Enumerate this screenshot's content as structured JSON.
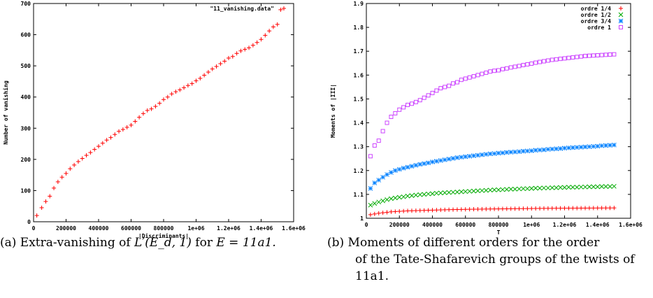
{
  "chart_data": [
    {
      "type": "scatter",
      "xlabel": "|Discriminants|",
      "ylabel": "Number of vanishing",
      "xlim": [
        0,
        1600000
      ],
      "ylim": [
        0,
        700
      ],
      "xticks": [
        0,
        200000,
        400000,
        600000,
        800000,
        1000000,
        1200000,
        1400000,
        1600000
      ],
      "xtick_labels": [
        "0",
        "200000",
        "400000",
        "600000",
        "800000",
        "1e+06",
        "1.2e+06",
        "1.4e+06",
        "1.6e+06"
      ],
      "yticks": [
        0,
        100,
        200,
        300,
        400,
        500,
        600,
        700
      ],
      "ytick_labels": [
        "0",
        "100",
        "200",
        "300",
        "400",
        "500",
        "600",
        "700"
      ],
      "legend_position": "top-right",
      "series": [
        {
          "name": "\"11_vanishing.data\"",
          "color": "#ff0000",
          "marker": "+",
          "x": [
            20000,
            50000,
            75000,
            100000,
            125000,
            150000,
            175000,
            200000,
            225000,
            250000,
            275000,
            300000,
            325000,
            350000,
            375000,
            400000,
            425000,
            450000,
            475000,
            500000,
            525000,
            550000,
            575000,
            600000,
            625000,
            650000,
            675000,
            700000,
            725000,
            750000,
            775000,
            800000,
            825000,
            850000,
            875000,
            900000,
            925000,
            950000,
            975000,
            1000000,
            1025000,
            1050000,
            1075000,
            1100000,
            1125000,
            1150000,
            1175000,
            1200000,
            1225000,
            1250000,
            1275000,
            1300000,
            1325000,
            1350000,
            1375000,
            1400000,
            1425000,
            1450000,
            1475000,
            1500000,
            1520000
          ],
          "y": [
            20,
            45,
            65,
            82,
            108,
            128,
            143,
            155,
            170,
            182,
            193,
            203,
            213,
            222,
            232,
            242,
            252,
            262,
            270,
            280,
            290,
            296,
            303,
            310,
            322,
            335,
            347,
            357,
            362,
            370,
            380,
            392,
            400,
            410,
            417,
            423,
            430,
            437,
            443,
            452,
            460,
            470,
            480,
            490,
            498,
            507,
            515,
            525,
            530,
            540,
            548,
            553,
            558,
            566,
            575,
            585,
            598,
            612,
            625,
            633,
            680
          ]
        }
      ]
    },
    {
      "type": "scatter",
      "xlabel": "T",
      "ylabel": "Moments of |III|",
      "xlim": [
        0,
        1600000
      ],
      "ylim": [
        1,
        1.9
      ],
      "xticks": [
        0,
        200000,
        400000,
        600000,
        800000,
        1000000,
        1200000,
        1400000,
        1600000
      ],
      "xtick_labels": [
        "0",
        "200000",
        "400000",
        "600000",
        "800000",
        "1e+06",
        "1.2e+06",
        "1.4e+06",
        "1.6e+06"
      ],
      "yticks": [
        1,
        1.1,
        1.2,
        1.3,
        1.4,
        1.5,
        1.6,
        1.7,
        1.8,
        1.9
      ],
      "ytick_labels": [
        "1",
        "1.1",
        "1.2",
        "1.3",
        "1.4",
        "1.5",
        "1.6",
        "1.7",
        "1.8",
        "1.9"
      ],
      "legend_position": "top-right",
      "x": [
        25000,
        50000,
        75000,
        100000,
        125000,
        150000,
        175000,
        200000,
        225000,
        250000,
        275000,
        300000,
        325000,
        350000,
        375000,
        400000,
        425000,
        450000,
        475000,
        500000,
        525000,
        550000,
        575000,
        600000,
        625000,
        650000,
        675000,
        700000,
        725000,
        750000,
        775000,
        800000,
        825000,
        850000,
        875000,
        900000,
        925000,
        950000,
        975000,
        1000000,
        1025000,
        1050000,
        1075000,
        1100000,
        1125000,
        1150000,
        1175000,
        1200000,
        1225000,
        1250000,
        1275000,
        1300000,
        1325000,
        1350000,
        1375000,
        1400000,
        1425000,
        1450000,
        1475000,
        1500000
      ],
      "series": [
        {
          "name": "ordre 1/4",
          "color": "#ff0000",
          "marker": "+",
          "y": [
            1.015,
            1.018,
            1.021,
            1.023,
            1.025,
            1.027,
            1.028,
            1.029,
            1.03,
            1.031,
            1.0315,
            1.032,
            1.0325,
            1.033,
            1.0335,
            1.034,
            1.0345,
            1.035,
            1.0355,
            1.036,
            1.0363,
            1.0366,
            1.037,
            1.0373,
            1.0376,
            1.0379,
            1.038,
            1.0383,
            1.0386,
            1.0388,
            1.039,
            1.0392,
            1.0394,
            1.0396,
            1.0398,
            1.04,
            1.0402,
            1.0404,
            1.0406,
            1.0408,
            1.041,
            1.0412,
            1.0414,
            1.0415,
            1.0417,
            1.0419,
            1.042,
            1.0421,
            1.0422,
            1.0423,
            1.0424,
            1.0425,
            1.0426,
            1.0427,
            1.0428,
            1.0429,
            1.043,
            1.0431,
            1.0432,
            1.0433
          ]
        },
        {
          "name": "ordre 1/2",
          "color": "#00aa00",
          "marker": "x",
          "y": [
            1.055,
            1.062,
            1.068,
            1.073,
            1.078,
            1.082,
            1.085,
            1.088,
            1.09,
            1.093,
            1.095,
            1.097,
            1.099,
            1.1,
            1.102,
            1.103,
            1.105,
            1.106,
            1.107,
            1.108,
            1.109,
            1.11,
            1.111,
            1.112,
            1.113,
            1.114,
            1.115,
            1.116,
            1.117,
            1.118,
            1.119,
            1.119,
            1.12,
            1.121,
            1.122,
            1.122,
            1.123,
            1.124,
            1.124,
            1.125,
            1.126,
            1.126,
            1.127,
            1.127,
            1.128,
            1.128,
            1.129,
            1.129,
            1.13,
            1.13,
            1.13,
            1.131,
            1.131,
            1.132,
            1.132,
            1.132,
            1.133,
            1.133,
            1.133,
            1.134
          ]
        },
        {
          "name": "ordre 3/4",
          "color": "#0080ff",
          "marker": "*",
          "y": [
            1.125,
            1.148,
            1.16,
            1.172,
            1.183,
            1.192,
            1.2,
            1.205,
            1.21,
            1.214,
            1.218,
            1.222,
            1.226,
            1.229,
            1.232,
            1.236,
            1.239,
            1.242,
            1.245,
            1.248,
            1.251,
            1.254,
            1.256,
            1.258,
            1.26,
            1.262,
            1.264,
            1.266,
            1.268,
            1.27,
            1.271,
            1.273,
            1.274,
            1.276,
            1.277,
            1.278,
            1.279,
            1.281,
            1.282,
            1.283,
            1.285,
            1.286,
            1.287,
            1.289,
            1.29,
            1.291,
            1.292,
            1.294,
            1.295,
            1.296,
            1.297,
            1.298,
            1.299,
            1.3,
            1.301,
            1.302,
            1.304,
            1.305,
            1.306,
            1.307
          ]
        },
        {
          "name": "ordre 1",
          "color": "#cc44ff",
          "marker": "square",
          "y": [
            1.26,
            1.305,
            1.325,
            1.365,
            1.4,
            1.425,
            1.44,
            1.455,
            1.465,
            1.475,
            1.48,
            1.487,
            1.495,
            1.505,
            1.515,
            1.525,
            1.535,
            1.545,
            1.55,
            1.555,
            1.565,
            1.57,
            1.58,
            1.585,
            1.59,
            1.595,
            1.6,
            1.605,
            1.61,
            1.615,
            1.618,
            1.62,
            1.625,
            1.628,
            1.632,
            1.635,
            1.638,
            1.642,
            1.645,
            1.648,
            1.652,
            1.655,
            1.658,
            1.661,
            1.664,
            1.666,
            1.668,
            1.67,
            1.672,
            1.674,
            1.676,
            1.678,
            1.68,
            1.681,
            1.682,
            1.683,
            1.684,
            1.685,
            1.686,
            1.687
          ]
        }
      ]
    }
  ],
  "captions": {
    "a_prefix": "(a) Extra-vanishing of ",
    "a_math": "L′(E_d, 1)",
    "a_mid": " for ",
    "a_math2": "E = 11a1.",
    "b_line1": "(b) Moments of different orders for the order",
    "b_line2": "of the Tate-Shafarevich groups of the twists of",
    "b_line3": "11a1."
  }
}
